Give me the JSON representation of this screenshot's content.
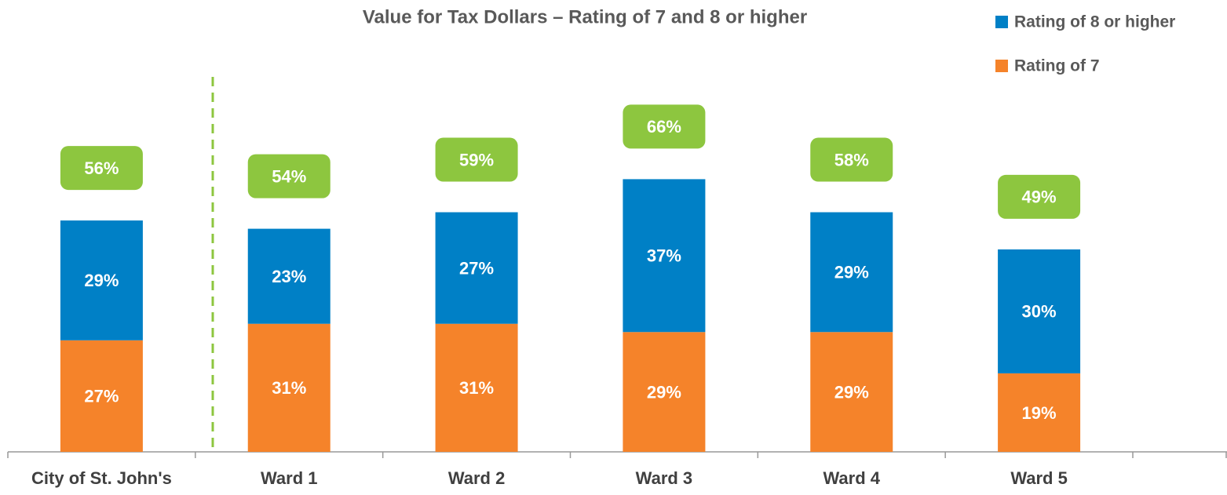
{
  "chart_data": {
    "type": "stacked_bar",
    "title": "Value for Tax Dollars – Rating of 7 and 8 or higher",
    "categories": [
      "City of St. John's",
      "Ward 1",
      "Ward 2",
      "Ward 3",
      "Ward 4",
      "Ward 5"
    ],
    "series": [
      {
        "name": "Rating of 7",
        "color": "#f5832a",
        "values": [
          27,
          31,
          31,
          29,
          29,
          19
        ],
        "value_labels": [
          "27%",
          "31%",
          "31%",
          "29%",
          "29%",
          "19%"
        ]
      },
      {
        "name": "Rating of 8 or higher",
        "color": "#0080c6",
        "values": [
          29,
          23,
          27,
          37,
          29,
          30
        ],
        "value_labels": [
          "29%",
          "23%",
          "27%",
          "37%",
          "29%",
          "30%"
        ]
      }
    ],
    "totals": [
      56,
      54,
      59,
      66,
      58,
      49
    ],
    "total_labels": [
      "56%",
      "54%",
      "59%",
      "66%",
      "58%",
      "49%"
    ],
    "total_color": "#8dc63f",
    "ylim": [
      0,
      90
    ],
    "legend": "top-right"
  }
}
